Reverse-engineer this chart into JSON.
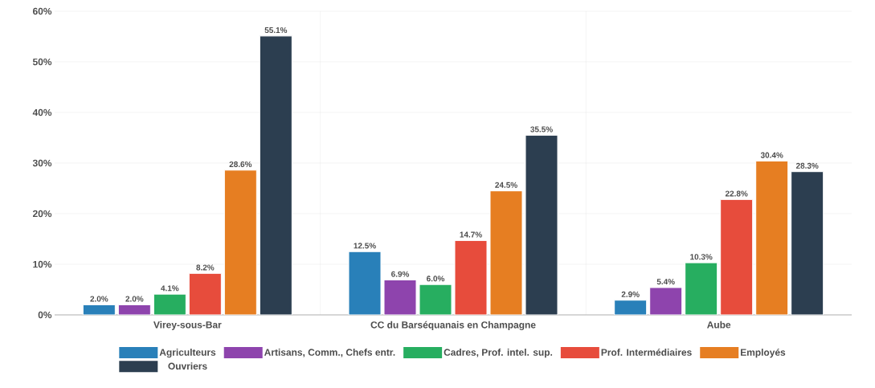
{
  "chart_data": {
    "type": "bar",
    "categories": [
      "Virey-sous-Bar",
      "CC du Barséquanais en Champagne",
      "Aube"
    ],
    "series": [
      {
        "name": "Agriculteurs",
        "color": "#2980b9",
        "values": [
          2.0,
          12.5,
          2.9
        ],
        "value_labels": [
          "2.0%",
          "12.5%",
          "2.9%"
        ]
      },
      {
        "name": "Artisans, Comm., Chefs entr.",
        "color": "#8e44ad",
        "values": [
          2.0,
          6.9,
          5.4
        ],
        "value_labels": [
          "2.0%",
          "6.9%",
          "5.4%"
        ]
      },
      {
        "name": "Cadres, Prof. intel. sup.",
        "color": "#27ae60",
        "values": [
          4.1,
          6.0,
          10.3
        ],
        "value_labels": [
          "4.1%",
          "6.0%",
          "10.3%"
        ]
      },
      {
        "name": "Prof. Intermédiaires",
        "color": "#e74c3c",
        "values": [
          8.2,
          14.7,
          22.8
        ],
        "value_labels": [
          "8.2%",
          "14.7%",
          "22.8%"
        ]
      },
      {
        "name": "Employés",
        "color": "#e67e22",
        "values": [
          28.6,
          24.5,
          30.4
        ],
        "value_labels": [
          "28.6%",
          "24.5%",
          "30.4%"
        ]
      },
      {
        "name": "Ouvriers",
        "color": "#2c3e50",
        "values": [
          55.1,
          35.5,
          28.3
        ],
        "value_labels": [
          "55.1%",
          "35.5%",
          "28.3%"
        ]
      }
    ],
    "ylim": [
      0,
      60
    ],
    "yticks": [
      {
        "value": 0,
        "label": "0%"
      },
      {
        "value": 10,
        "label": "10%"
      },
      {
        "value": 20,
        "label": "20%"
      },
      {
        "value": 30,
        "label": "30%"
      },
      {
        "value": 40,
        "label": "40%"
      },
      {
        "value": 50,
        "label": "50%"
      },
      {
        "value": 60,
        "label": "60%"
      }
    ],
    "grid": true,
    "legend": "bottom"
  }
}
